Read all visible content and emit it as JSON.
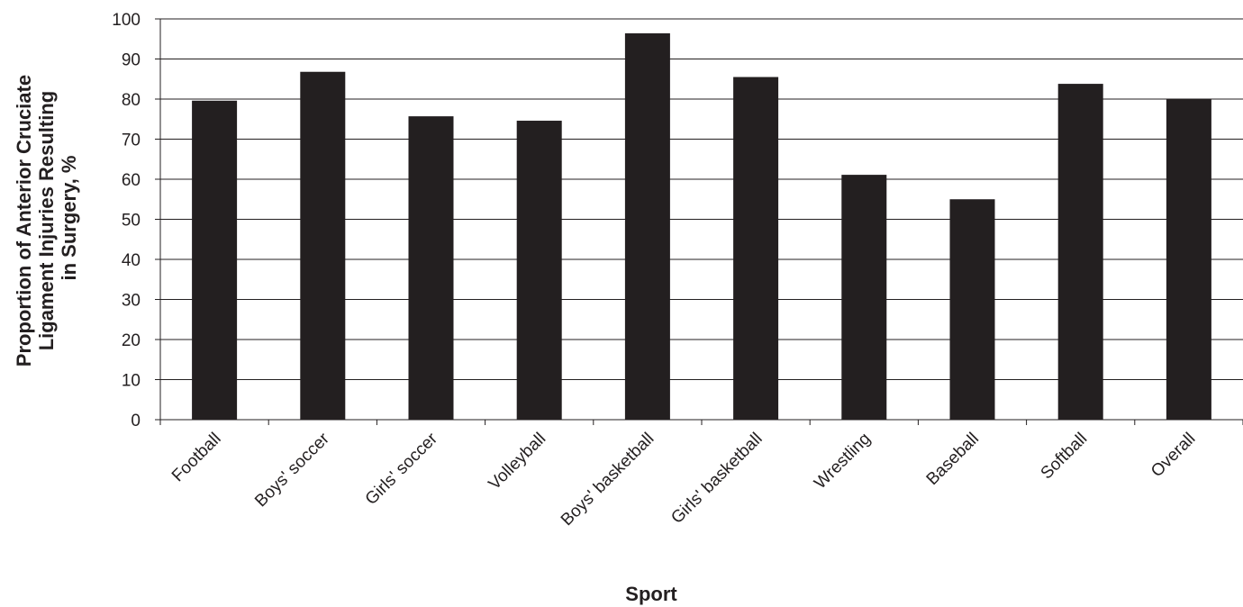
{
  "chart_data": {
    "type": "bar",
    "title": "",
    "xlabel": "Sport",
    "ylabel_lines": [
      "Proportion of Anterior Cruciate",
      "Ligament Injuries Resulting",
      "in Surgery, %"
    ],
    "categories": [
      "Football",
      "Boys' soccer",
      "Girls' soccer",
      "Volleyball",
      "Boys' basketball",
      "Girls' basketball",
      "Wrestling",
      "Baseball",
      "Softball",
      "Overall"
    ],
    "values": [
      79.6,
      86.8,
      75.7,
      74.6,
      96.4,
      85.5,
      61.1,
      55.0,
      83.8,
      80.0
    ],
    "ylim": [
      0,
      100
    ],
    "yticks": [
      0,
      10,
      20,
      30,
      40,
      50,
      60,
      70,
      80,
      90,
      100
    ],
    "grid": true,
    "bar_color": "#231f20",
    "text_color": "#231f20"
  }
}
